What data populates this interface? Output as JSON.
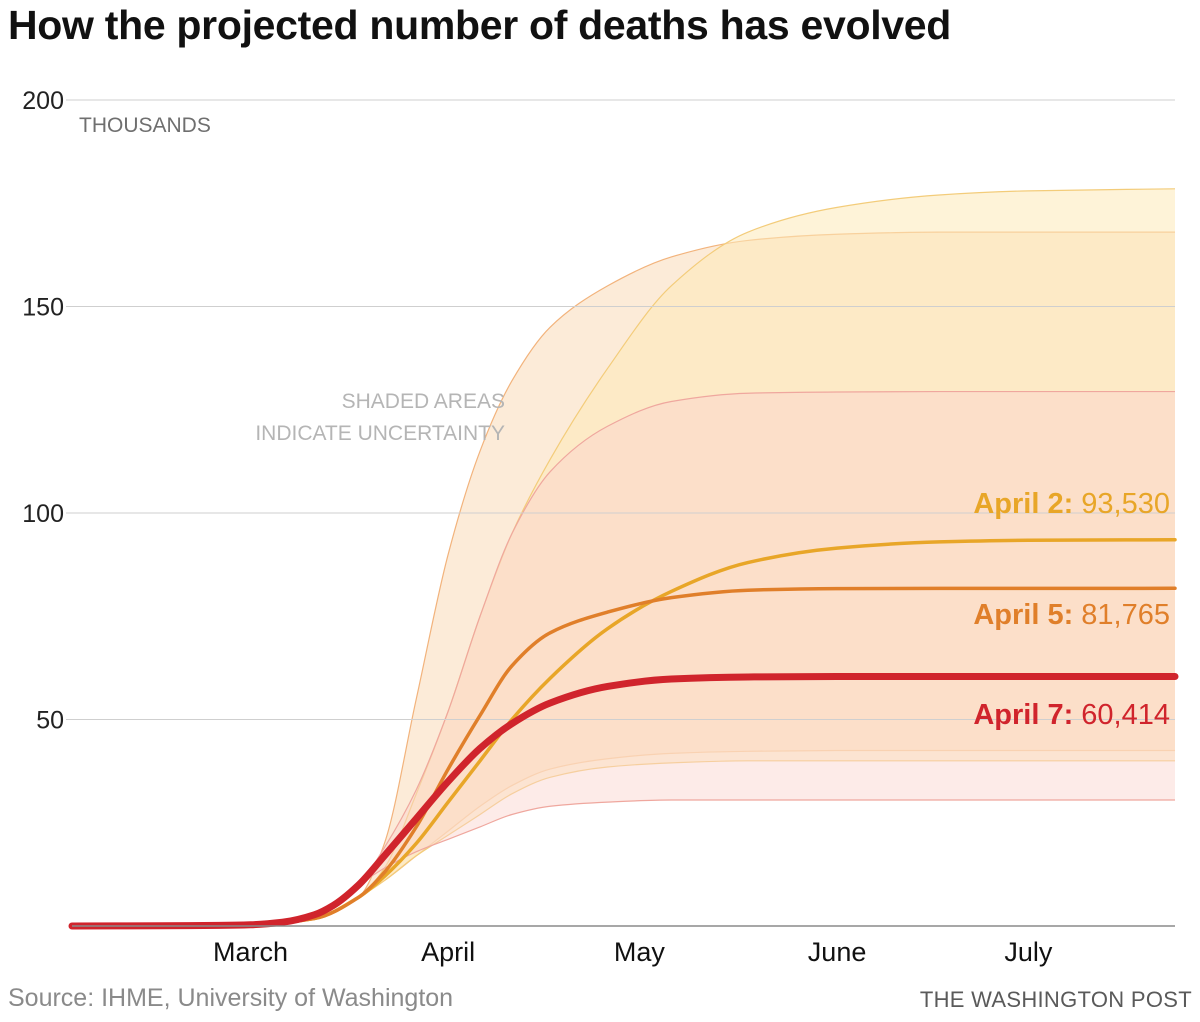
{
  "title": "How the projected number of deaths has evolved",
  "source": "Source: IHME, University of Washington",
  "credit": "THE WASHINGTON POST",
  "colors": {
    "april2": "#E8A628",
    "april5": "#E07F2A",
    "april7": "#D0242C",
    "grid": "#cfcfcf",
    "baseline": "#8a8a8a",
    "annotation": "#b5b5b5"
  },
  "chart_data": {
    "type": "line",
    "title": "How the projected number of deaths has evolved",
    "ylabel": "THOUSANDS",
    "ylim": [
      0,
      200
    ],
    "yticks": [
      50,
      100,
      150,
      200
    ],
    "ytick_labels": [
      "50",
      "100",
      "150",
      "200"
    ],
    "x_axis": "date (2020)",
    "xlim": [
      "2020-02-16",
      "2020-08-07"
    ],
    "xtick_dates": [
      "2020-03-01",
      "2020-04-01",
      "2020-05-01",
      "2020-06-01",
      "2020-07-01"
    ],
    "xtick_labels": [
      "March",
      "April",
      "May",
      "June",
      "July"
    ],
    "grid": true,
    "annotation": [
      "SHADED AREAS",
      "INDICATE UNCERTAINTY"
    ],
    "series": [
      {
        "key": "april2",
        "label_bold": "April 2:",
        "label_value": "93,530",
        "final_value": 93.53,
        "dates": [
          "2020-02-16",
          "2020-03-01",
          "2020-03-15",
          "2020-03-25",
          "2020-04-01",
          "2020-04-05",
          "2020-04-10",
          "2020-04-15",
          "2020-04-20",
          "2020-04-25",
          "2020-05-01",
          "2020-05-10",
          "2020-05-20",
          "2020-06-01",
          "2020-06-15",
          "2020-07-01",
          "2020-07-15",
          "2020-08-07"
        ],
        "values": [
          0,
          0,
          0.3,
          1.8,
          7,
          12,
          20,
          30,
          40,
          50,
          60,
          72,
          81,
          88,
          91.5,
          93,
          93.4,
          93.53
        ],
        "upper": [
          0,
          0,
          0.3,
          1.8,
          7,
          14,
          32,
          52,
          75,
          95,
          113,
          135,
          155,
          168,
          174,
          177,
          178,
          178.5
        ],
        "lower": [
          0,
          0,
          0.3,
          1.8,
          7,
          11,
          17,
          22,
          27,
          32,
          36,
          38.5,
          39.5,
          40,
          40,
          40,
          40,
          40
        ]
      },
      {
        "key": "april5",
        "label_bold": "April 5:",
        "label_value": "81,765",
        "final_value": 81.765,
        "dates": [
          "2020-02-16",
          "2020-03-01",
          "2020-03-15",
          "2020-03-25",
          "2020-04-01",
          "2020-04-05",
          "2020-04-10",
          "2020-04-15",
          "2020-04-20",
          "2020-04-25",
          "2020-05-01",
          "2020-05-10",
          "2020-05-20",
          "2020-06-01",
          "2020-06-15",
          "2020-07-01",
          "2020-07-15",
          "2020-08-07"
        ],
        "values": [
          0,
          0,
          0.3,
          1.8,
          7,
          13,
          24,
          38,
          51,
          63,
          71,
          76,
          79.5,
          81.3,
          81.7,
          81.76,
          81.76,
          81.765
        ],
        "upper": [
          0,
          0,
          0.3,
          1.8,
          7,
          20,
          55,
          90,
          115,
          132,
          145,
          155,
          162,
          166,
          167.5,
          168,
          168,
          168
        ],
        "lower": [
          0,
          0,
          0.3,
          1.8,
          7,
          11,
          17,
          23,
          29,
          34,
          38,
          40.5,
          41.8,
          42.3,
          42.5,
          42.5,
          42.5,
          42.5
        ]
      },
      {
        "key": "april7",
        "label_bold": "April 7:",
        "label_value": "60,414",
        "final_value": 60.414,
        "dates": [
          "2020-02-16",
          "2020-03-01",
          "2020-03-10",
          "2020-03-15",
          "2020-03-20",
          "2020-03-25",
          "2020-03-28",
          "2020-04-01",
          "2020-04-05",
          "2020-04-10",
          "2020-04-15",
          "2020-04-20",
          "2020-04-25",
          "2020-05-01",
          "2020-05-10",
          "2020-05-20",
          "2020-06-01",
          "2020-06-15",
          "2020-07-01",
          "2020-08-07"
        ],
        "values": [
          0,
          0.05,
          0.15,
          0.3,
          0.9,
          2.7,
          5,
          10,
          17,
          26,
          35,
          43,
          49,
          54,
          58,
          59.8,
          60.3,
          60.4,
          60.41,
          60.414
        ],
        "upper": [
          0,
          0.05,
          0.15,
          0.3,
          0.9,
          2.7,
          5,
          10,
          19,
          33,
          52,
          75,
          95,
          110,
          121,
          127,
          129,
          129.3,
          129.4,
          129.4
        ],
        "lower": [
          0,
          0.05,
          0.15,
          0.3,
          0.9,
          2.7,
          5,
          10,
          14,
          18,
          21,
          24,
          27,
          29,
          30,
          30.5,
          30.5,
          30.5,
          30.5,
          30.5
        ]
      }
    ]
  }
}
